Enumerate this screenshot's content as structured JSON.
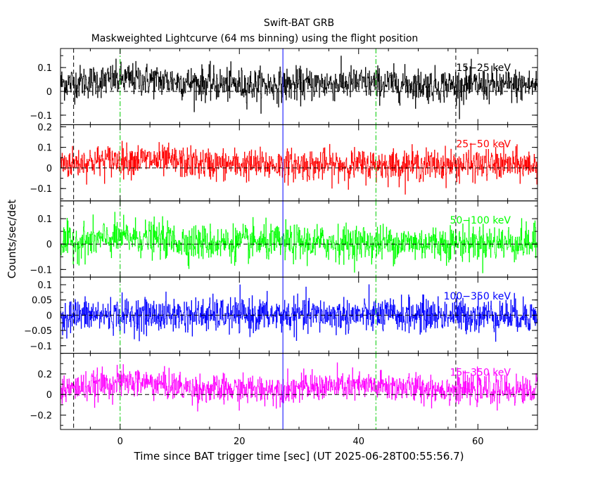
{
  "chart_data": {
    "type": "line",
    "title": "Swift-BAT GRB",
    "subtitle": "Maskweighted Lightcurve (64 ms binning) using the flight position",
    "xlabel": "Time since BAT trigger time [sec] (UT 2025-06-28T00:55:56.7)",
    "ylabel": "Counts/sec/det",
    "xlim": [
      -10,
      70
    ],
    "x_ticks": [
      0,
      20,
      40,
      60
    ],
    "x_tick_labels": [
      "0",
      "20",
      "40",
      "60"
    ],
    "bin_seconds": 0.064,
    "panels": [
      {
        "band": "15–25 keV",
        "label": "15−25 keV",
        "color": "#000000",
        "ylim": [
          -0.14,
          0.18
        ],
        "y_ticks": [
          -0.1,
          0,
          0.1
        ],
        "y_tick_labels": [
          "−0.1",
          "0",
          "0.1"
        ],
        "mean": 0.025,
        "noise_sd": 0.035,
        "bumps": [
          {
            "t": 2,
            "amp": 0.025,
            "width": 8
          },
          {
            "t": 40,
            "amp": 0.01,
            "width": 6
          }
        ]
      },
      {
        "band": "25–50 keV",
        "label": "25−50 keV",
        "color": "#ff0000",
        "ylim": [
          -0.16,
          0.21
        ],
        "y_ticks": [
          -0.1,
          0,
          0.1,
          0.2
        ],
        "y_tick_labels": [
          "−0.1",
          "0",
          "0.1",
          "0.2"
        ],
        "mean": 0.015,
        "noise_sd": 0.038,
        "bumps": [
          {
            "t": 2,
            "amp": 0.025,
            "width": 7
          }
        ]
      },
      {
        "band": "50–100 keV",
        "label": "50−100 keV",
        "color": "#00ff00",
        "ylim": [
          -0.13,
          0.17
        ],
        "y_ticks": [
          -0.1,
          0,
          0.1
        ],
        "y_tick_labels": [
          "−0.1",
          "0",
          "0.1"
        ],
        "mean": 0.005,
        "noise_sd": 0.035,
        "bumps": [
          {
            "t": 2,
            "amp": 0.02,
            "width": 5
          }
        ]
      },
      {
        "band": "100–350 keV",
        "label": "100−350 keV",
        "color": "#0000ff",
        "ylim": [
          -0.125,
          0.125
        ],
        "y_ticks": [
          -0.1,
          -0.05,
          0,
          0.05,
          0.1
        ],
        "y_tick_labels": [
          "−0.1",
          "−0.05",
          "0",
          "0.05",
          "0.1"
        ],
        "mean": 0.0,
        "noise_sd": 0.028,
        "bumps": []
      },
      {
        "band": "15–350 keV",
        "label": "15−350 keV",
        "color": "#ff00ff",
        "ylim": [
          -0.34,
          0.4
        ],
        "y_ticks": [
          -0.2,
          0,
          0.2
        ],
        "y_tick_labels": [
          "−0.2",
          "0",
          "0.2"
        ],
        "mean": 0.04,
        "noise_sd": 0.07,
        "bumps": [
          {
            "t": 2,
            "amp": 0.08,
            "width": 6
          },
          {
            "t": 40,
            "amp": 0.04,
            "width": 10
          }
        ]
      }
    ],
    "vertical_markers": [
      {
        "x": -7.8,
        "style": "dashed",
        "color": "#000000"
      },
      {
        "x": 56.3,
        "style": "dashed",
        "color": "#000000"
      },
      {
        "x": 0,
        "style": "dash-dot",
        "color": "#00cc00"
      },
      {
        "x": 42.9,
        "style": "dash-dot",
        "color": "#00cc00"
      },
      {
        "x": 27.3,
        "style": "solid",
        "color": "#0000ff"
      }
    ]
  }
}
